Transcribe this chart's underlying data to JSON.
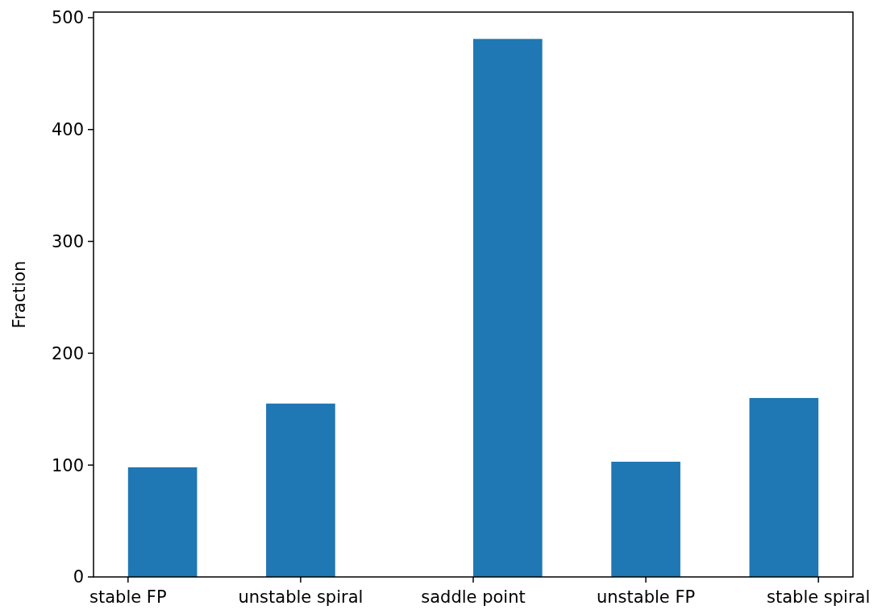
{
  "chart_data": {
    "type": "bar",
    "ylabel": "Fraction",
    "categories": [
      "stable FP",
      "unstable spiral",
      "saddle point",
      "unstable FP",
      "stable spiral"
    ],
    "values": [
      98,
      155,
      481,
      103,
      160
    ],
    "color": "#1f77b4",
    "ylim": [
      0,
      505
    ],
    "yticks": [
      0,
      100,
      200,
      300,
      400,
      500
    ]
  }
}
